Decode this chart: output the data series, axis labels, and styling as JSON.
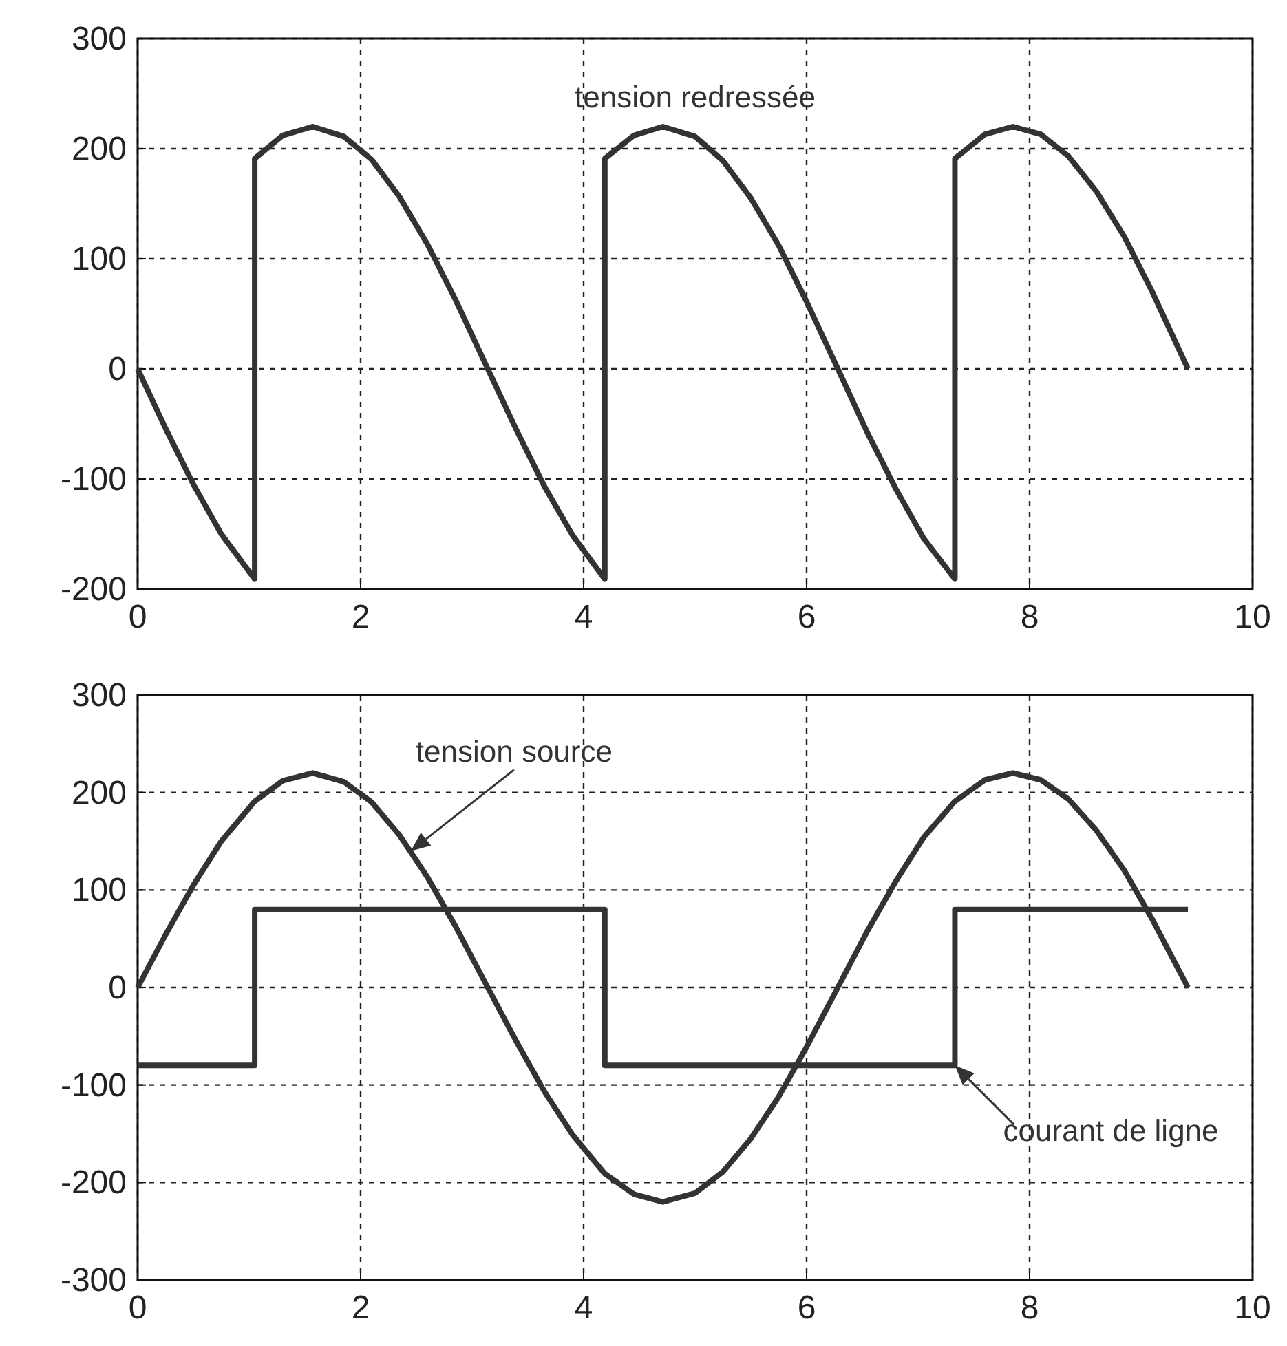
{
  "chart_data": [
    {
      "type": "line",
      "xlim": [
        0,
        10
      ],
      "ylim": [
        -200,
        300
      ],
      "xticks": [
        0,
        2,
        4,
        6,
        8,
        10
      ],
      "yticks": [
        -200,
        -100,
        0,
        100,
        200,
        300
      ],
      "grid": true,
      "line_style": "solid",
      "marker": "none",
      "annotations": [
        "tension redressée"
      ],
      "series": [
        {
          "color": "#333333",
          "x": [
            0,
            0.25,
            0.5,
            0.75,
            1.05,
            1.05,
            1.3,
            1.57,
            1.85,
            2.1,
            2.35,
            2.6,
            2.85,
            3.14,
            3.4,
            3.65,
            3.9,
            4.19,
            4.19,
            4.45,
            4.71,
            5.0,
            5.25,
            5.5,
            5.75,
            6.0,
            6.28,
            6.55,
            6.8,
            7.05,
            7.33,
            7.33,
            7.6,
            7.85,
            8.1,
            8.35,
            8.6,
            8.85,
            9.1,
            9.42
          ],
          "values": [
            0,
            -54,
            -105,
            -150,
            -191,
            191,
            212,
            220,
            211,
            190,
            156,
            113,
            63,
            0,
            -56,
            -107,
            -151,
            -191,
            191,
            212,
            220,
            211,
            189,
            155,
            112,
            61,
            0,
            -59,
            -109,
            -154,
            -191,
            191,
            213,
            220,
            213,
            193,
            161,
            120,
            70,
            0
          ]
        }
      ]
    },
    {
      "type": "line",
      "xlim": [
        0,
        10
      ],
      "ylim": [
        -300,
        300
      ],
      "xticks": [
        0,
        2,
        4,
        6,
        8,
        10
      ],
      "yticks": [
        -300,
        -200,
        -100,
        0,
        100,
        200,
        300
      ],
      "grid": true,
      "line_style": "solid",
      "marker": "none",
      "annotations": [
        {
          "text": "tension source",
          "x": 2.45,
          "y": 140
        },
        {
          "text": "courant de ligne",
          "x": 7.33,
          "y": -80
        }
      ],
      "series": [
        {
          "color": "#333333",
          "x": [
            0,
            0.25,
            0.5,
            0.75,
            1.05,
            1.3,
            1.57,
            1.85,
            2.1,
            2.35,
            2.6,
            2.85,
            3.14,
            3.4,
            3.65,
            3.9,
            4.19,
            4.45,
            4.71,
            5.0,
            5.25,
            5.5,
            5.75,
            6.0,
            6.28,
            6.55,
            6.8,
            7.05,
            7.33,
            7.6,
            7.85,
            8.1,
            8.35,
            8.6,
            8.85,
            9.1,
            9.42
          ],
          "values": [
            0,
            54,
            105,
            150,
            191,
            212,
            220,
            211,
            190,
            156,
            113,
            63,
            0,
            -56,
            -107,
            -151,
            -191,
            -212,
            -220,
            -211,
            -189,
            -155,
            -112,
            -61,
            0,
            59,
            109,
            154,
            191,
            213,
            220,
            213,
            193,
            161,
            120,
            70,
            0
          ]
        },
        {
          "type": "step",
          "color": "#333333",
          "x": [
            0,
            1.05,
            4.19,
            7.33,
            9.42
          ],
          "values": [
            -80,
            80,
            -80,
            80,
            80
          ]
        }
      ]
    }
  ]
}
